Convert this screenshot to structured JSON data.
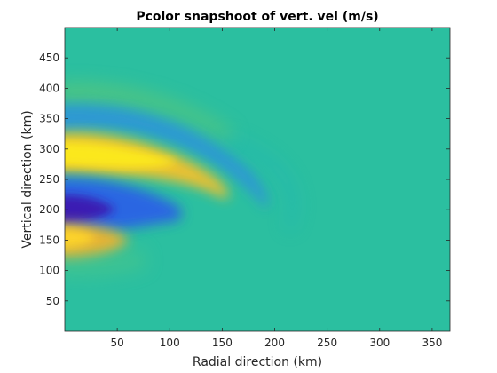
{
  "chart_data": {
    "type": "heatmap",
    "title": "Pcolor snapshoot of vert. vel (m/s)",
    "xlabel": "Radial direction (km)",
    "ylabel": "Vertical direction (km)",
    "xlim": [
      0,
      367
    ],
    "ylim": [
      0,
      500
    ],
    "xticks": [
      50,
      100,
      150,
      200,
      250,
      300,
      350
    ],
    "yticks": [
      50,
      100,
      150,
      200,
      250,
      300,
      350,
      400,
      450
    ],
    "colormap": "parula",
    "background_value": 0.0,
    "grid": false,
    "features": [
      {
        "name": "positive lobe upper",
        "x": 15,
        "y": 295,
        "value": 1.0
      },
      {
        "name": "negative lobe",
        "x": 10,
        "y": 200,
        "value": -1.0
      },
      {
        "name": "positive lobe lower",
        "x": 15,
        "y": 155,
        "value": 0.75
      },
      {
        "name": "negative lobe upper",
        "x": 15,
        "y": 355,
        "value": -0.45
      },
      {
        "name": "positive band top",
        "x": 20,
        "y": 410,
        "value": 0.2
      }
    ]
  }
}
